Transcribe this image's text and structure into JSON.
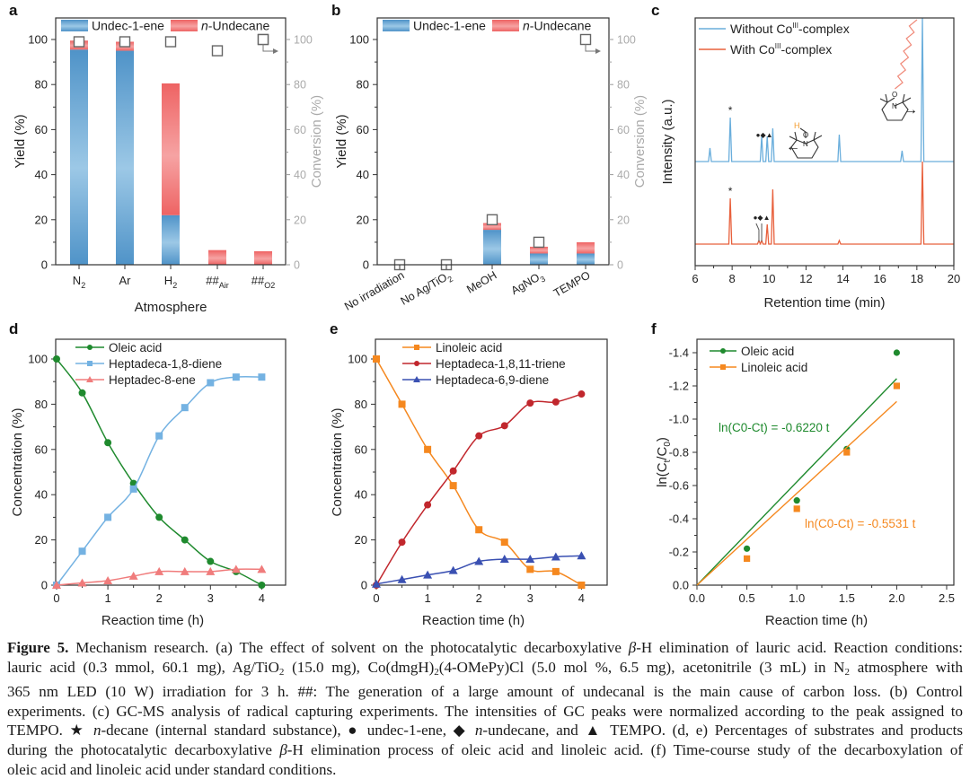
{
  "panel_labels": [
    "a",
    "b",
    "c",
    "d",
    "e",
    "f"
  ],
  "chart_data": [
    {
      "id": "a",
      "type": "bar",
      "stacked": true,
      "title": "",
      "xlabel": "Atmosphere",
      "ylabel": "Yield (%)",
      "y2label": "Conversion (%)",
      "ylim": [
        0,
        110
      ],
      "yticks": [
        "0",
        "20",
        "40",
        "60",
        "80",
        "100"
      ],
      "categories": [
        {
          "main": "N",
          "sub": "2"
        },
        {
          "main": "Ar",
          "sub": ""
        },
        {
          "main": "H",
          "sub": "2"
        },
        {
          "main": "##",
          "sub": "Air"
        },
        {
          "main": "##",
          "sub": "O2"
        }
      ],
      "series": [
        {
          "name": "Undec-1-ene",
          "name_italic": "",
          "color": "#5b9fd0",
          "values": [
            95.5,
            95,
            22,
            0,
            0
          ]
        },
        {
          "name": "-Undecane",
          "name_italic": "n",
          "color": "#ef6b6b",
          "values": [
            4,
            4,
            58.5,
            6.5,
            6
          ]
        }
      ],
      "conversion": [
        99,
        99,
        99,
        95,
        100
      ],
      "legend": "top"
    },
    {
      "id": "b",
      "type": "bar",
      "stacked": true,
      "title": "",
      "xlabel": "",
      "ylabel": "Yield (%)",
      "y2label": "Conversion (%)",
      "ylim": [
        0,
        110
      ],
      "yticks": [
        "0",
        "20",
        "40",
        "60",
        "80",
        "100"
      ],
      "categories": [
        {
          "main": "No irradiation",
          "sub": ""
        },
        {
          "main": "No Ag/TiO",
          "sub": "2"
        },
        {
          "main": "MeOH",
          "sub": ""
        },
        {
          "main": "AgNO",
          "sub": "3"
        },
        {
          "main": "TEMPO",
          "sub": ""
        }
      ],
      "series": [
        {
          "name": "Undec-1-ene",
          "name_italic": "",
          "color": "#5b9fd0",
          "values": [
            0,
            0,
            15.5,
            5,
            5
          ]
        },
        {
          "name": "-Undecane",
          "name_italic": "n",
          "color": "#ef6b6b",
          "values": [
            0,
            0,
            3,
            3,
            5
          ]
        }
      ],
      "conversion": [
        0,
        0,
        20,
        10,
        null
      ],
      "legend": "top"
    },
    {
      "id": "c",
      "type": "line",
      "xlabel": "Retention time (min)",
      "ylabel": "Intensity (a.u.)",
      "xlim": [
        6,
        20
      ],
      "xticks": [
        "6",
        "8",
        "10",
        "12",
        "14",
        "16",
        "18",
        "20"
      ],
      "series": [
        {
          "name_pre": "Without Co",
          "name_sup": "III",
          "name_post": "-complex",
          "color": "#6aaedc",
          "peaks": [
            [
              6.8,
              0.15
            ],
            [
              7.9,
              0.49
            ],
            [
              9.6,
              0.28
            ],
            [
              9.9,
              0.28
            ],
            [
              10.2,
              0.37
            ],
            [
              13.8,
              0.3
            ],
            [
              17.2,
              0.12
            ],
            [
              18.3,
              1.8
            ]
          ]
        },
        {
          "name_pre": "With Co",
          "name_sup": "III",
          "name_post": "-complex",
          "color": "#e8603c",
          "peaks": [
            [
              7.9,
              0.51
            ],
            [
              9.45,
              0.04
            ],
            [
              9.6,
              0.04
            ],
            [
              9.9,
              0.22
            ],
            [
              10.2,
              0.61
            ],
            [
              13.8,
              0.04
            ],
            [
              18.3,
              0.92
            ]
          ]
        }
      ],
      "annotations": {
        "star": "*",
        "markers": "●◆▲",
        "arrow_left": "←",
        "arrow_right": "→",
        "atom_h": "H",
        "atom_o": "O",
        "atom_n": "N"
      },
      "legend": "top-left"
    },
    {
      "id": "d",
      "type": "line",
      "xlabel": "Reaction time (h)",
      "ylabel": "Concentration (%)",
      "xlim": [
        0,
        4.5
      ],
      "ylim": [
        0,
        110
      ],
      "xticks": [
        "0",
        "1",
        "2",
        "3",
        "4"
      ],
      "yticks": [
        "0",
        "20",
        "40",
        "60",
        "80",
        "100"
      ],
      "x": [
        0,
        0.5,
        1,
        1.5,
        2,
        2.5,
        3,
        3.5,
        4
      ],
      "series": [
        {
          "name": "Oleic acid",
          "color": "#1f8a2e",
          "marker": "circle",
          "values": [
            100,
            85,
            63,
            45,
            30,
            20,
            10.5,
            6,
            0
          ]
        },
        {
          "name": "Heptadeca-1,8-diene",
          "color": "#74b2e2",
          "marker": "square",
          "values": [
            0,
            15,
            30,
            42.5,
            66,
            78.5,
            89.5,
            92,
            92
          ]
        },
        {
          "name": "Heptadec-8-ene",
          "color": "#f07c7c",
          "marker": "triangle",
          "values": [
            0,
            1,
            2,
            4,
            6,
            6,
            6,
            7,
            7
          ]
        }
      ],
      "legend": "top-left"
    },
    {
      "id": "e",
      "type": "line",
      "xlabel": "Reaction time (h)",
      "ylabel": "Concentration (%)",
      "xlim": [
        0,
        4.5
      ],
      "ylim": [
        0,
        110
      ],
      "xticks": [
        "0",
        "1",
        "2",
        "3",
        "4"
      ],
      "yticks": [
        "0",
        "20",
        "40",
        "60",
        "80",
        "100"
      ],
      "x": [
        0,
        0.5,
        1,
        1.5,
        2,
        2.5,
        3,
        3.5,
        4
      ],
      "series": [
        {
          "name": "Linoleic acid",
          "color": "#f5881f",
          "marker": "square",
          "values": [
            100,
            80,
            60,
            44,
            24.5,
            19,
            7,
            6,
            0
          ]
        },
        {
          "name": "Heptadeca-1,8,11-triene",
          "color": "#c1272d",
          "marker": "circle",
          "values": [
            0,
            19,
            35.5,
            50.5,
            66,
            70.5,
            80.5,
            81,
            84.5
          ]
        },
        {
          "name": "Heptadeca-6,9-diene",
          "color": "#3a50b2",
          "marker": "triangle",
          "values": [
            0.5,
            2.5,
            4.5,
            6.5,
            10.5,
            11.5,
            11.5,
            12.5,
            13
          ]
        }
      ],
      "legend": "top-left"
    },
    {
      "id": "f",
      "type": "scatter",
      "xlabel": "Reaction time (h)",
      "ylabel_pre": "ln(C",
      "ylabel_sub1": "t",
      "ylabel_mid": "/C",
      "ylabel_sub2": "0",
      "ylabel_post": ")",
      "xlim": [
        0,
        2.5
      ],
      "ylim": [
        0,
        -1.5
      ],
      "xticks": [
        "0.0",
        "0.5",
        "1.0",
        "1.5",
        "2.0",
        "2.5"
      ],
      "yticks": [
        "0.0",
        "-0.2",
        "-0.4",
        "-0.6",
        "-0.8",
        "-1.0",
        "-1.2",
        "-1.4"
      ],
      "x": [
        0.5,
        1,
        1.5,
        2
      ],
      "series": [
        {
          "name": "Oleic acid",
          "color": "#1f8a2e",
          "marker": "circle",
          "values": [
            -0.22,
            -0.51,
            -0.82,
            -1.4
          ],
          "fit_slope": -0.622,
          "equation": "ln(C0-Ct) = -0.6220 t"
        },
        {
          "name": "Linoleic acid",
          "color": "#f5881f",
          "marker": "square",
          "values": [
            -0.16,
            -0.46,
            -0.8,
            -1.2
          ],
          "fit_slope": -0.5531,
          "equation": "ln(C0-Ct) = -0.5531 t"
        }
      ],
      "legend": "top-left"
    }
  ],
  "caption": [
    [
      [
        "Figure 5.",
        "b"
      ],
      [
        " Mechanism research. (a) The effect of solvent on the photocatalytic decarboxylative ",
        ""
      ],
      [
        "β",
        "i"
      ],
      [
        "-H elimination of lauric acid. Reaction conditions:",
        ""
      ]
    ],
    [
      [
        "lauric acid (0.3 mmol, 60.1 mg), Ag/TiO",
        ""
      ],
      [
        "2",
        "sub"
      ],
      [
        " (15.0 mg), Co(dmgH)",
        ""
      ],
      [
        "2",
        "sub"
      ],
      [
        "(4-OMePy)Cl (5.0 mol %, 6.5 mg), acetonitrile (3 mL) in N",
        ""
      ],
      [
        "2",
        "sub"
      ],
      [
        " atmosphere with",
        ""
      ]
    ],
    [
      [
        "365 nm LED (10 W) irradiation for 3 h. ##: The generation of a large amount of undecanal is the main cause of carbon loss. (b) Control",
        ""
      ]
    ],
    [
      [
        "experiments. (c) GC-MS analysis of radical capturing experiments. The intensities of GC peaks were normalized according to the peak assigned to",
        ""
      ]
    ],
    [
      [
        "TEMPO. ★ ",
        ""
      ],
      [
        "n",
        "i"
      ],
      [
        "-decane (internal standard substance), ● undec-1-ene, ◆ ",
        ""
      ],
      [
        "n",
        "i"
      ],
      [
        "-undecane, and ▲ TEMPO. (d, e) Percentages of substrates and products",
        ""
      ]
    ],
    [
      [
        "during the photocatalytic decarboxylative ",
        ""
      ],
      [
        "β",
        "i"
      ],
      [
        "-H elimination process of oleic acid and linoleic acid. (f) Time-course study of the decarboxylation of",
        ""
      ]
    ],
    [
      [
        "oleic acid and linoleic acid under standard conditions.",
        ""
      ]
    ]
  ]
}
